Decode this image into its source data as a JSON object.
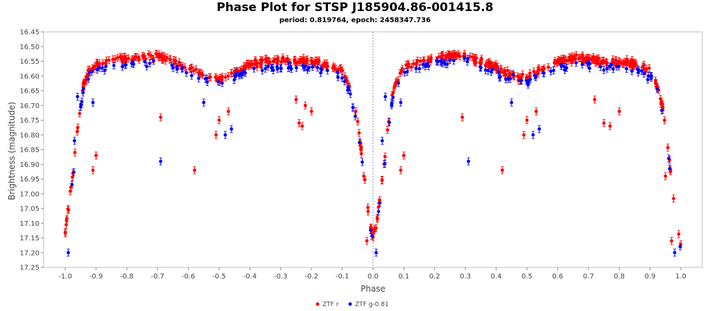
{
  "chart_data": {
    "type": "scatter",
    "title": "Phase Plot for STSP J185904.86-001415.8",
    "subtitle": "period: 0.819764, epoch: 2458347.736",
    "xlabel": "Phase",
    "ylabel": "Brightness (magnitude)",
    "xlim": [
      -1.07,
      1.07
    ],
    "ylim": [
      16.45,
      17.25
    ],
    "y_inverted": true,
    "x_ticks": [
      -1.0,
      -0.9,
      -0.8,
      -0.7,
      -0.6,
      -0.5,
      -0.4,
      -0.3,
      -0.2,
      -0.1,
      0.0,
      0.1,
      0.2,
      0.3,
      0.4,
      0.5,
      0.6,
      0.7,
      0.8,
      0.9,
      1.0
    ],
    "x_tick_labels": [
      "-1.0",
      "-0.9",
      "-0.8",
      "-0.7",
      "-0.6",
      "-0.5",
      "-0.4",
      "-0.3",
      "-0.2",
      "-0.1",
      "0.0",
      "0.1",
      "0.2",
      "0.3",
      "0.4",
      "0.5",
      "0.6",
      "0.7",
      "0.8",
      "0.9",
      "1.0"
    ],
    "y_ticks": [
      16.45,
      16.5,
      16.55,
      16.6,
      16.65,
      16.7,
      16.75,
      16.8,
      16.85,
      16.9,
      16.95,
      17.0,
      17.05,
      17.1,
      17.15,
      17.2,
      17.25
    ],
    "y_tick_labels": [
      "16.45",
      "16.50",
      "16.55",
      "16.60",
      "16.65",
      "16.70",
      "16.75",
      "16.80",
      "16.85",
      "16.90",
      "16.95",
      "17.00",
      "17.05",
      "17.10",
      "17.15",
      "17.20",
      "17.25"
    ],
    "grid": false,
    "zero_line": 0.0,
    "legend_position": "bottom-center",
    "series": [
      {
        "name": "ZTF r",
        "color": "#ff0000",
        "error": 0.012,
        "phase_magnitude_profile": [
          [
            -1.0,
            17.13
          ],
          [
            -0.99,
            17.05
          ],
          [
            -0.98,
            16.97
          ],
          [
            -0.97,
            16.88
          ],
          [
            -0.96,
            16.78
          ],
          [
            -0.95,
            16.69
          ],
          [
            -0.94,
            16.63
          ],
          [
            -0.92,
            16.58
          ],
          [
            -0.9,
            16.56
          ],
          [
            -0.85,
            16.55
          ],
          [
            -0.8,
            16.54
          ],
          [
            -0.75,
            16.54
          ],
          [
            -0.7,
            16.53
          ],
          [
            -0.65,
            16.55
          ],
          [
            -0.6,
            16.57
          ],
          [
            -0.55,
            16.6
          ],
          [
            -0.5,
            16.61
          ],
          [
            -0.45,
            16.59
          ],
          [
            -0.4,
            16.56
          ],
          [
            -0.35,
            16.55
          ],
          [
            -0.3,
            16.55
          ],
          [
            -0.25,
            16.55
          ],
          [
            -0.2,
            16.55
          ],
          [
            -0.15,
            16.56
          ],
          [
            -0.1,
            16.58
          ],
          [
            -0.08,
            16.62
          ],
          [
            -0.06,
            16.7
          ],
          [
            -0.05,
            16.76
          ],
          [
            -0.04,
            16.84
          ],
          [
            -0.03,
            16.93
          ],
          [
            -0.02,
            17.03
          ],
          [
            -0.01,
            17.1
          ],
          [
            0.0,
            17.14
          ],
          [
            0.01,
            17.11
          ],
          [
            0.02,
            17.03
          ],
          [
            0.03,
            16.95
          ],
          [
            0.04,
            16.86
          ],
          [
            0.05,
            16.76
          ],
          [
            0.06,
            16.68
          ],
          [
            0.07,
            16.63
          ],
          [
            0.1,
            16.57
          ],
          [
            0.15,
            16.55
          ],
          [
            0.2,
            16.54
          ],
          [
            0.25,
            16.53
          ],
          [
            0.3,
            16.53
          ],
          [
            0.35,
            16.55
          ],
          [
            0.4,
            16.57
          ],
          [
            0.45,
            16.6
          ],
          [
            0.5,
            16.61
          ],
          [
            0.55,
            16.58
          ],
          [
            0.6,
            16.55
          ],
          [
            0.65,
            16.54
          ],
          [
            0.7,
            16.54
          ],
          [
            0.75,
            16.55
          ],
          [
            0.8,
            16.55
          ],
          [
            0.85,
            16.56
          ],
          [
            0.9,
            16.58
          ],
          [
            0.92,
            16.62
          ],
          [
            0.94,
            16.7
          ],
          [
            0.95,
            16.77
          ],
          [
            0.96,
            16.86
          ],
          [
            0.97,
            16.95
          ],
          [
            0.98,
            17.04
          ],
          [
            0.99,
            17.12
          ],
          [
            1.0,
            17.17
          ]
        ],
        "outliers": [
          [
            -0.91,
            16.92
          ],
          [
            -0.9,
            16.87
          ],
          [
            -0.69,
            16.74
          ],
          [
            -0.58,
            16.92
          ],
          [
            -0.51,
            16.8
          ],
          [
            -0.47,
            16.72
          ],
          [
            -0.5,
            16.75
          ],
          [
            -0.25,
            16.68
          ],
          [
            -0.24,
            16.76
          ],
          [
            -0.23,
            16.77
          ],
          [
            -0.2,
            16.72
          ],
          [
            -0.22,
            16.7
          ],
          [
            -0.03,
            16.94
          ],
          [
            -0.02,
            17.16
          ],
          [
            0.09,
            16.92
          ],
          [
            0.1,
            16.87
          ],
          [
            0.29,
            16.74
          ],
          [
            0.42,
            16.92
          ],
          [
            0.49,
            16.8
          ],
          [
            0.53,
            16.72
          ],
          [
            0.5,
            16.75
          ],
          [
            0.75,
            16.76
          ],
          [
            0.77,
            16.77
          ],
          [
            0.8,
            16.72
          ],
          [
            0.72,
            16.68
          ],
          [
            0.95,
            16.94
          ],
          [
            0.97,
            17.16
          ]
        ]
      },
      {
        "name": "ZTF g-0.81",
        "color": "#0000ff",
        "error": 0.012,
        "phase_magnitude_profile": [
          [
            -1.0,
            17.16
          ],
          [
            -0.99,
            17.08
          ],
          [
            -0.98,
            16.99
          ],
          [
            -0.97,
            16.9
          ],
          [
            -0.96,
            16.8
          ],
          [
            -0.95,
            16.71
          ],
          [
            -0.94,
            16.65
          ],
          [
            -0.92,
            16.6
          ],
          [
            -0.9,
            16.58
          ],
          [
            -0.85,
            16.57
          ],
          [
            -0.8,
            16.56
          ],
          [
            -0.75,
            16.56
          ],
          [
            -0.7,
            16.55
          ],
          [
            -0.65,
            16.57
          ],
          [
            -0.6,
            16.59
          ],
          [
            -0.55,
            16.61
          ],
          [
            -0.5,
            16.62
          ],
          [
            -0.45,
            16.6
          ],
          [
            -0.4,
            16.58
          ],
          [
            -0.35,
            16.57
          ],
          [
            -0.3,
            16.57
          ],
          [
            -0.25,
            16.57
          ],
          [
            -0.2,
            16.57
          ],
          [
            -0.15,
            16.58
          ],
          [
            -0.1,
            16.6
          ],
          [
            -0.08,
            16.64
          ],
          [
            -0.06,
            16.72
          ],
          [
            -0.05,
            16.78
          ],
          [
            -0.04,
            16.86
          ],
          [
            -0.03,
            16.95
          ],
          [
            -0.02,
            17.05
          ],
          [
            -0.01,
            17.12
          ],
          [
            0.0,
            17.16
          ],
          [
            0.01,
            17.13
          ],
          [
            0.02,
            17.05
          ],
          [
            0.03,
            16.97
          ],
          [
            0.04,
            16.88
          ],
          [
            0.05,
            16.78
          ],
          [
            0.06,
            16.7
          ],
          [
            0.07,
            16.65
          ],
          [
            0.1,
            16.59
          ],
          [
            0.15,
            16.57
          ],
          [
            0.2,
            16.56
          ],
          [
            0.25,
            16.55
          ],
          [
            0.3,
            16.55
          ],
          [
            0.35,
            16.57
          ],
          [
            0.4,
            16.59
          ],
          [
            0.45,
            16.61
          ],
          [
            0.5,
            16.62
          ],
          [
            0.55,
            16.6
          ],
          [
            0.6,
            16.57
          ],
          [
            0.65,
            16.56
          ],
          [
            0.7,
            16.56
          ],
          [
            0.75,
            16.57
          ],
          [
            0.8,
            16.57
          ],
          [
            0.85,
            16.58
          ],
          [
            0.9,
            16.6
          ],
          [
            0.92,
            16.64
          ],
          [
            0.94,
            16.72
          ],
          [
            0.95,
            16.79
          ],
          [
            0.96,
            16.88
          ],
          [
            0.97,
            16.97
          ],
          [
            0.98,
            17.06
          ],
          [
            0.99,
            17.14
          ],
          [
            1.0,
            17.18
          ]
        ],
        "outliers": [
          [
            -0.96,
            16.67
          ],
          [
            -0.97,
            16.82
          ],
          [
            -0.91,
            16.69
          ],
          [
            -0.69,
            16.89
          ],
          [
            -0.55,
            16.69
          ],
          [
            -0.48,
            16.8
          ],
          [
            -0.46,
            16.78
          ],
          [
            -0.99,
            17.2
          ],
          [
            0.01,
            17.2
          ],
          [
            0.04,
            16.67
          ],
          [
            0.03,
            16.82
          ],
          [
            0.09,
            16.69
          ],
          [
            0.31,
            16.89
          ],
          [
            0.45,
            16.69
          ],
          [
            0.52,
            16.8
          ],
          [
            0.54,
            16.78
          ],
          [
            0.98,
            17.2
          ]
        ]
      }
    ]
  }
}
